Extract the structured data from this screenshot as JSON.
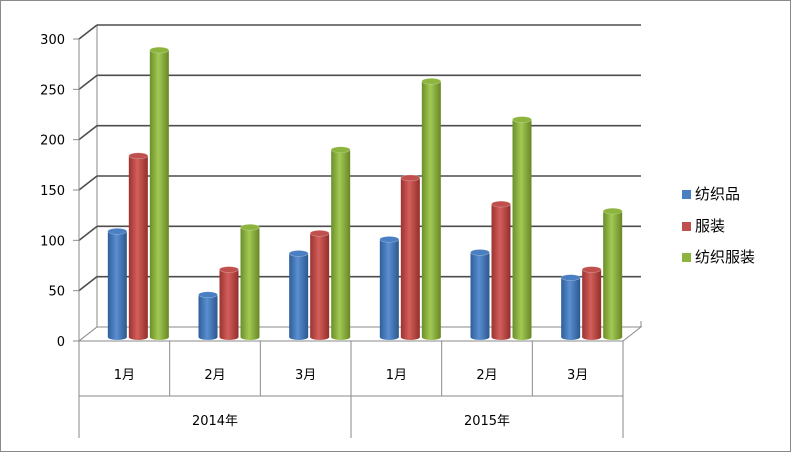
{
  "chart_data": {
    "type": "bar",
    "groups": [
      "2014年",
      "2015年"
    ],
    "categories": [
      "1月",
      "2月",
      "3月",
      "1月",
      "2月",
      "3月"
    ],
    "series": [
      {
        "name": "纺织品",
        "color": "#4a7fc1",
        "values": [
          107,
          44,
          85,
          99,
          86,
          61
        ]
      },
      {
        "name": "服装",
        "color": "#c0504d",
        "values": [
          182,
          69,
          105,
          160,
          134,
          69
        ]
      },
      {
        "name": "纺织服装",
        "color": "#8db43e",
        "values": [
          287,
          111,
          188,
          256,
          218,
          127
        ]
      }
    ],
    "ylim": [
      0,
      300
    ],
    "yticks": [
      0,
      50,
      100,
      150,
      200,
      250,
      300
    ],
    "grid": true,
    "legend_position": "right"
  }
}
